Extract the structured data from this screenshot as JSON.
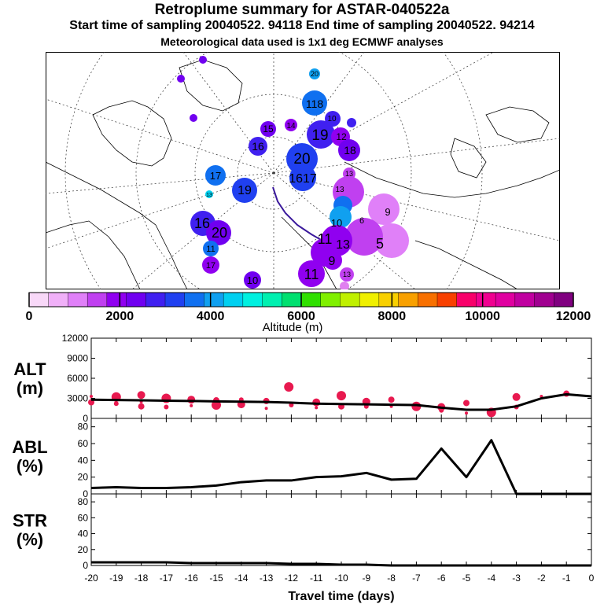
{
  "header": {
    "title": "Retroplume summary for ASTAR-040522a",
    "sampling_line": "Start time of sampling 20040522. 94118     End time of sampling 20040522. 94214",
    "met_line": "Meteorological data used is 1x1 deg ECMWF analyses"
  },
  "colors": {
    "line": "#000000",
    "alt_dots": "#e8194f",
    "colorbar": [
      "#f8d8f8",
      "#f0b0f8",
      "#e080f8",
      "#c040f0",
      "#9000f0",
      "#7000f0",
      "#4020f0",
      "#2040f0",
      "#1070f0",
      "#10a0f0",
      "#00d0f0",
      "#00f0e0",
      "#00f0b0",
      "#00e070",
      "#30e000",
      "#80f000",
      "#c0f000",
      "#f0f000",
      "#f8d000",
      "#f8a000",
      "#f87000",
      "#f84000",
      "#f8006a",
      "#f00090",
      "#e000a0",
      "#c000a0",
      "#a00090",
      "#800080"
    ]
  },
  "map": {
    "labels": [
      "20",
      "118",
      "10",
      "19",
      "12",
      "14",
      "15",
      "16",
      "18",
      "20",
      "1617",
      "13",
      "17",
      "19",
      "13",
      "16",
      "20",
      "11",
      "17",
      "10",
      "11",
      "13",
      "9",
      "5",
      "10",
      "11",
      "6",
      "13",
      "9",
      "13"
    ]
  },
  "chart_data": [
    {
      "type": "colorbar",
      "title": "Altitude (m)",
      "range": [
        0,
        12000
      ],
      "tick_values": [
        0,
        2000,
        4000,
        6000,
        8000,
        10000,
        12000
      ],
      "tick_labels": [
        "0",
        "2000",
        "4000",
        "6000",
        "8000",
        "10000",
        "12000"
      ]
    },
    {
      "type": "line",
      "name": "ALT",
      "ylabel": "ALT\n(m)",
      "ylabel_lines": [
        "ALT",
        "(m)"
      ],
      "ylim": [
        0,
        12000
      ],
      "yticks": [
        0,
        3000,
        6000,
        9000,
        12000
      ],
      "ytick_labels": [
        "0",
        "3000",
        "6000",
        "9000",
        "12000"
      ],
      "x": [
        -20,
        -19,
        -18,
        -17,
        -16,
        -15,
        -14,
        -13,
        -12,
        -11,
        -10,
        -9,
        -8,
        -7,
        -6,
        -5,
        -4,
        -3,
        -2,
        -1,
        0
      ],
      "values": [
        2800,
        2750,
        2700,
        2650,
        2600,
        2550,
        2500,
        2450,
        2350,
        2200,
        2150,
        2100,
        2050,
        2000,
        1600,
        1300,
        1300,
        1800,
        3000,
        3600,
        3300
      ],
      "points": [
        {
          "x": -20,
          "y": 3300
        },
        {
          "x": -20,
          "y": 2400
        },
        {
          "x": -19,
          "y": 3200
        },
        {
          "x": -19,
          "y": 2200
        },
        {
          "x": -18,
          "y": 3500
        },
        {
          "x": -18,
          "y": 2500
        },
        {
          "x": -18,
          "y": 1800
        },
        {
          "x": -17,
          "y": 3000
        },
        {
          "x": -17,
          "y": 1700
        },
        {
          "x": -16,
          "y": 2800
        },
        {
          "x": -16,
          "y": 1900
        },
        {
          "x": -15,
          "y": 2700
        },
        {
          "x": -15,
          "y": 2000
        },
        {
          "x": -14,
          "y": 2800
        },
        {
          "x": -14,
          "y": 2100
        },
        {
          "x": -13,
          "y": 1500
        },
        {
          "x": -13,
          "y": 2600
        },
        {
          "x": -12.1,
          "y": 4700
        },
        {
          "x": -12,
          "y": 2000
        },
        {
          "x": -11,
          "y": 2400
        },
        {
          "x": -11,
          "y": 1600
        },
        {
          "x": -10,
          "y": 1800
        },
        {
          "x": -10,
          "y": 3400
        },
        {
          "x": -9,
          "y": 1800
        },
        {
          "x": -9,
          "y": 2500
        },
        {
          "x": -8,
          "y": 1800
        },
        {
          "x": -8,
          "y": 2800
        },
        {
          "x": -7,
          "y": 1800
        },
        {
          "x": -6,
          "y": 1200
        },
        {
          "x": -6,
          "y": 1700
        },
        {
          "x": -5,
          "y": 800
        },
        {
          "x": -5,
          "y": 2300
        },
        {
          "x": -4,
          "y": 900
        },
        {
          "x": -3,
          "y": 1700
        },
        {
          "x": -3,
          "y": 3200
        },
        {
          "x": -2,
          "y": 3300
        },
        {
          "x": -1,
          "y": 3700
        }
      ]
    },
    {
      "type": "line",
      "name": "ABL",
      "ylabel_lines": [
        "ABL",
        "(%)"
      ],
      "ylim": [
        0,
        90
      ],
      "yticks": [
        0,
        20,
        40,
        60,
        80
      ],
      "ytick_labels": [
        "0",
        "20",
        "40",
        "60",
        "80"
      ],
      "x": [
        -20,
        -19,
        -18,
        -17,
        -16,
        -15,
        -14,
        -13,
        -12,
        -11,
        -10,
        -9,
        -8,
        -7,
        -6,
        -5,
        -4,
        -3,
        -2,
        -1,
        0
      ],
      "values": [
        7,
        8,
        7,
        7,
        8,
        10,
        14,
        16,
        16,
        20,
        21,
        25,
        17,
        18,
        54,
        20,
        64,
        0,
        0,
        0,
        0
      ]
    },
    {
      "type": "line",
      "name": "STR",
      "ylabel_lines": [
        "STR",
        "(%)"
      ],
      "ylim": [
        0,
        90
      ],
      "yticks": [
        0,
        20,
        40,
        60,
        80
      ],
      "ytick_labels": [
        "0",
        "20",
        "40",
        "60",
        "80"
      ],
      "x": [
        -20,
        -19,
        -18,
        -17,
        -16,
        -15,
        -14,
        -13,
        -12,
        -11,
        -10,
        -9,
        -8,
        -7,
        -6,
        -5,
        -4,
        -3,
        -2,
        -1,
        0
      ],
      "values": [
        4,
        4,
        4,
        4,
        3,
        3,
        3,
        3,
        2,
        2,
        1,
        1,
        0,
        0,
        0,
        0,
        0,
        0,
        0,
        0,
        0
      ],
      "xlabel": "Travel time (days)",
      "xticks": [
        -20,
        -19,
        -18,
        -17,
        -16,
        -15,
        -14,
        -13,
        -12,
        -11,
        -10,
        -9,
        -8,
        -7,
        -6,
        -5,
        -4,
        -3,
        -2,
        -1,
        0
      ],
      "xtick_labels": [
        "-20",
        "-19",
        "-18",
        "-17",
        "-16",
        "-15",
        "-14",
        "-13",
        "-12",
        "-11",
        "-10",
        "-9",
        "-8",
        "-7",
        "-6",
        "-5",
        "-4",
        "-3",
        "-2",
        "-1",
        "0"
      ]
    }
  ]
}
